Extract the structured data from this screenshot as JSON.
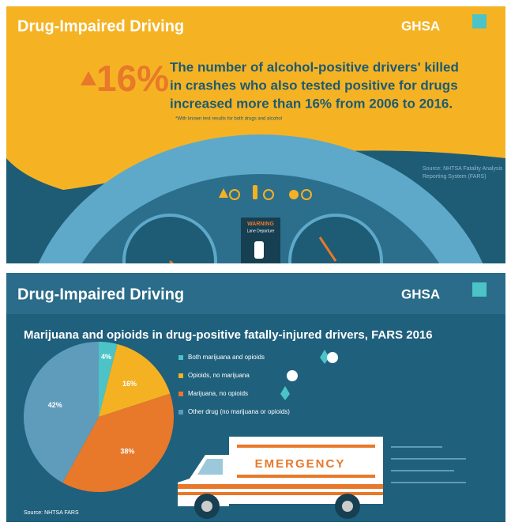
{
  "panel1": {
    "title": "Drug-Impaired Driving",
    "logo": "GHSA",
    "stat": "16%",
    "lines": [
      "The number of alcohol-positive drivers' killed",
      "in crashes who also tested positive for drugs",
      "increased more than 16% from 2006 to 2016."
    ],
    "footnote": "*With known test results for both drugs and alcohol",
    "source": [
      "Source: NHTSA Fatality Analysis",
      "Reporting System (FARS)"
    ],
    "warning": "WARNING",
    "warning_sub": "Lane Departure"
  },
  "panel2": {
    "title": "Drug-Impaired Driving",
    "logo": "GHSA",
    "source": "Source: NHTSA FARS",
    "ambulance": "EMERGENCY"
  },
  "chart_data": {
    "type": "pie",
    "title": "Marijuana and opioids in drug-positive fatally-injured drivers, FARS 2016",
    "categories": [
      "Both marijuana and opioids",
      "Opioids, no marijuana",
      "Marijuana, no opioids",
      "Other drug (no marijuana or opioids)"
    ],
    "values": [
      4,
      16,
      38,
      42
    ],
    "value_labels": [
      "4%",
      "16%",
      "38%",
      "42%"
    ],
    "colors": [
      "#4cc3c6",
      "#f4b223",
      "#e8782a",
      "#5f9bba"
    ]
  }
}
